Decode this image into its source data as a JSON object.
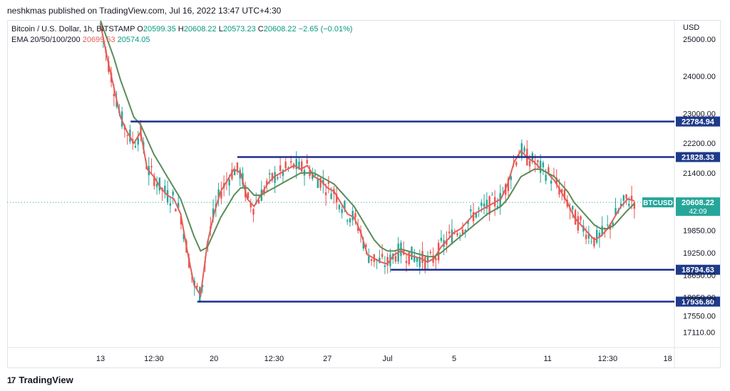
{
  "header": {
    "publish_text": "neshkmas published on TradingView.com, Jul 16, 2022 13:47 UTC+4:30"
  },
  "legend": {
    "symbol": "Bitcoin / U.S. Dollar, 1h, BITSTAMP",
    "o_label": "O",
    "o_value": "20599.35",
    "h_label": "H",
    "h_value": "20608.22",
    "l_label": "L",
    "l_value": "20573.23",
    "c_label": "C",
    "c_value": "20608.22",
    "change": "−2.65 (−0.01%)",
    "ema_label": "EMA 20/50/100/200",
    "ema_value_1": "20699.53",
    "ema_value_2": "20574.05"
  },
  "footer": {
    "brand": "TradingView",
    "brand_mark": "17"
  },
  "colors": {
    "up": "#26a69a",
    "down": "#ef5350",
    "ema_fast": "#e0605a",
    "ema_slow": "#5b8c5a",
    "level": "#1e2f8e",
    "label_bg": "#1e3a8a",
    "price_bg": "#26a69a"
  },
  "chart_data": {
    "type": "line",
    "title": "Bitcoin / U.S. Dollar, 1h, BITSTAMP",
    "currency_label": "USD",
    "ylim": [
      16700,
      25500
    ],
    "x_index_range": [
      0,
      100
    ],
    "y_ticks": [
      "25000.00",
      "24000.00",
      "23000.00",
      "22200.00",
      "21400.00",
      "19850.00",
      "19250.00",
      "18650.00",
      "18050.00",
      "17550.00",
      "17110.00"
    ],
    "y_tick_values": [
      25000,
      24000,
      23000,
      22200,
      21400,
      19850,
      19250,
      18650,
      18050,
      17550,
      17110
    ],
    "x_ticks": [
      {
        "label": "13",
        "x": 14
      },
      {
        "label": "12:30",
        "x": 22
      },
      {
        "label": "20",
        "x": 31
      },
      {
        "label": "12:30",
        "x": 40
      },
      {
        "label": "27",
        "x": 48
      },
      {
        "label": "Jul",
        "x": 57
      },
      {
        "label": "5",
        "x": 67
      },
      {
        "label": "11",
        "x": 81
      },
      {
        "label": "12:30",
        "x": 90
      },
      {
        "label": "18",
        "x": 99
      }
    ],
    "levels": [
      {
        "value": 22784.94,
        "label": "22784.94",
        "x_start": 18.5
      },
      {
        "value": 21828.33,
        "label": "21828.33",
        "x_start": 34.5
      },
      {
        "value": 18794.63,
        "label": "18794.63",
        "x_start": 57.5
      },
      {
        "value": 17936.8,
        "label": "17936.80",
        "x_start": 28.5
      }
    ],
    "current": {
      "symbol": "BTCUSD",
      "price": "20608.22",
      "countdown": "42:09",
      "value": 20608.22
    },
    "series": [
      {
        "values_x": [
          14,
          15,
          16,
          17,
          18,
          19,
          20,
          21,
          22,
          23,
          24,
          25,
          26,
          27,
          28,
          29,
          30,
          31,
          32,
          33,
          34,
          35,
          36,
          37,
          38,
          39,
          40,
          41,
          42,
          43,
          44,
          45,
          46,
          47,
          48,
          49,
          50,
          51,
          52,
          53,
          54,
          55,
          56,
          57,
          58,
          59,
          60,
          61,
          62,
          63,
          64,
          65,
          66,
          67,
          68,
          69,
          70,
          71,
          72,
          73,
          74,
          75,
          76,
          77,
          78,
          79,
          80,
          81,
          82,
          83,
          84,
          85,
          86,
          87,
          88,
          89,
          90,
          91,
          92,
          93,
          94
        ],
        "values": [
          25400,
          24500,
          23700,
          22900,
          22500,
          22200,
          22500,
          21500,
          21300,
          21000,
          20800,
          20700,
          20300,
          19300,
          18400,
          18100,
          19500,
          20300,
          20900,
          21200,
          21500,
          21400,
          20700,
          20500,
          20800,
          21100,
          21300,
          21400,
          21500,
          21600,
          21500,
          21600,
          21300,
          21200,
          21000,
          20900,
          20600,
          20300,
          20200,
          19800,
          19200,
          19100,
          19000,
          18950,
          19200,
          19300,
          19200,
          19150,
          19100,
          19000,
          19100,
          19400,
          19600,
          19800,
          19900,
          20100,
          20300,
          20400,
          20500,
          20600,
          20700,
          21100,
          21700,
          22000,
          21800,
          21700,
          21500,
          21400,
          21200,
          20900,
          20600,
          20200,
          20000,
          19800,
          19600,
          19700,
          19900,
          20200,
          20500,
          20700,
          20650
        ]
      },
      {
        "values_x": [
          14,
          15,
          16,
          17,
          18,
          19,
          20,
          21,
          22,
          23,
          24,
          25,
          26,
          27,
          28,
          29,
          30,
          31,
          32,
          33,
          34,
          35,
          36,
          37,
          38,
          39,
          40,
          41,
          42,
          43,
          44,
          45,
          46,
          47,
          48,
          49,
          50,
          51,
          52,
          53,
          54,
          55,
          56,
          57,
          58,
          59,
          60,
          61,
          62,
          63,
          64,
          65,
          66,
          67,
          68,
          69,
          70,
          71,
          72,
          73,
          74,
          75,
          76,
          77,
          78,
          79,
          80,
          81,
          82,
          83,
          84,
          85,
          86,
          87,
          88,
          89,
          90,
          91,
          92,
          93,
          94
        ],
        "values": [
          25500,
          25000,
          24500,
          23900,
          23400,
          22900,
          22700,
          22300,
          21900,
          21600,
          21300,
          21000,
          20700,
          20200,
          19700,
          19300,
          19400,
          19800,
          20200,
          20500,
          20800,
          21000,
          21000,
          20800,
          20800,
          20900,
          21000,
          21100,
          21200,
          21300,
          21400,
          21400,
          21400,
          21300,
          21200,
          21100,
          20900,
          20700,
          20500,
          20200,
          19900,
          19600,
          19400,
          19300,
          19300,
          19350,
          19300,
          19250,
          19200,
          19150,
          19150,
          19250,
          19400,
          19550,
          19700,
          19850,
          20000,
          20150,
          20300,
          20400,
          20500,
          20700,
          21000,
          21300,
          21400,
          21500,
          21500,
          21400,
          21300,
          21100,
          20900,
          20600,
          20400,
          20200,
          20000,
          19900,
          19900,
          20000,
          20200,
          20400,
          20574
        ]
      }
    ]
  }
}
